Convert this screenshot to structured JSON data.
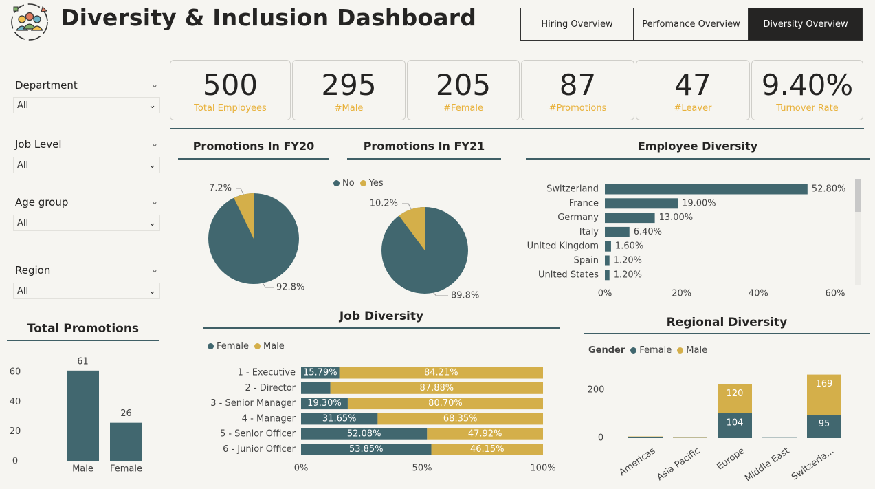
{
  "header": {
    "title": "Diversity & Inclusion Dashboard",
    "nav": [
      "Hiring Overview",
      "Perfomance Overview",
      "Diversity Overview"
    ],
    "active_nav": 2
  },
  "filters": [
    {
      "label": "Department",
      "value": "All"
    },
    {
      "label": "Job Level",
      "value": "All"
    },
    {
      "label": "Age group",
      "value": "All"
    },
    {
      "label": "Region",
      "value": "All"
    }
  ],
  "kpis": [
    {
      "value": "500",
      "label": "Total Employees"
    },
    {
      "value": "295",
      "label": "#Male"
    },
    {
      "value": "205",
      "label": "#Female"
    },
    {
      "value": "87",
      "label": "#Promotions"
    },
    {
      "value": "47",
      "label": "#Leaver"
    },
    {
      "value": "9.40%",
      "label": "Turnover Rate"
    }
  ],
  "colors": {
    "primary": "#41676f",
    "accent": "#d4af4a",
    "kpi_label": "#e8b13a",
    "rule": "#3f5f66"
  },
  "chart_data": [
    {
      "id": "promo_fy20",
      "type": "pie",
      "title": "Promotions In FY20",
      "legend": [
        "No",
        "Yes"
      ],
      "slices": [
        {
          "name": "No",
          "value": 92.8,
          "label": "92.8%"
        },
        {
          "name": "Yes",
          "value": 7.2,
          "label": "7.2%"
        }
      ]
    },
    {
      "id": "promo_fy21",
      "type": "pie",
      "title": "Promotions In FY21",
      "slices": [
        {
          "name": "No",
          "value": 89.8,
          "label": "89.8%"
        },
        {
          "name": "Yes",
          "value": 10.2,
          "label": "10.2%"
        }
      ]
    },
    {
      "id": "employee_diversity",
      "type": "bar",
      "orientation": "horizontal",
      "title": "Employee Diversity",
      "categories": [
        "Switzerland",
        "France",
        "Germany",
        "Italy",
        "United Kingdom",
        "Spain",
        "United States"
      ],
      "values": [
        52.8,
        19.0,
        13.0,
        6.4,
        1.6,
        1.2,
        1.2
      ],
      "labels": [
        "52.80%",
        "19.00%",
        "13.00%",
        "6.40%",
        "1.60%",
        "1.20%",
        "1.20%"
      ],
      "xticks": [
        "0%",
        "20%",
        "40%",
        "60%"
      ],
      "xlim": [
        0,
        60
      ]
    },
    {
      "id": "total_promotions",
      "type": "bar",
      "title": "Total Promotions",
      "categories": [
        "Male",
        "Female"
      ],
      "values": [
        61,
        26
      ],
      "yticks": [
        "0",
        "20",
        "40",
        "60"
      ],
      "ylim": [
        0,
        68
      ]
    },
    {
      "id": "job_diversity",
      "type": "bar",
      "stacked": "percent",
      "orientation": "horizontal",
      "title": "Job Diversity",
      "legend": [
        "Female",
        "Male"
      ],
      "categories": [
        "1 - Executive",
        "2 - Director",
        "3 - Senior Manager",
        "4 - Manager",
        "5 - Senior Officer",
        "6 - Junior Officer"
      ],
      "series": [
        {
          "name": "Female",
          "values": [
            15.79,
            12.12,
            19.3,
            31.65,
            52.08,
            53.85
          ],
          "labels": [
            "15.79%",
            "",
            "19.30%",
            "31.65%",
            "52.08%",
            "53.85%"
          ]
        },
        {
          "name": "Male",
          "values": [
            84.21,
            87.88,
            80.7,
            68.35,
            47.92,
            46.15
          ],
          "labels": [
            "84.21%",
            "87.88%",
            "80.70%",
            "68.35%",
            "47.92%",
            "46.15%"
          ]
        }
      ],
      "xticks": [
        "0%",
        "50%",
        "100%"
      ]
    },
    {
      "id": "regional_diversity",
      "type": "bar",
      "stacked": true,
      "title": "Regional Diversity",
      "legend_title": "Gender",
      "legend": [
        "Female",
        "Male"
      ],
      "categories": [
        "Americas",
        "Asia Pacific",
        "Europe",
        "Middle East",
        "Switzerla..."
      ],
      "series": [
        {
          "name": "Female",
          "values": [
            4,
            1,
            104,
            1,
            95
          ],
          "labels": [
            "",
            "",
            "104",
            "",
            "95"
          ]
        },
        {
          "name": "Male",
          "values": [
            3,
            1,
            120,
            0,
            169
          ],
          "labels": [
            "",
            "",
            "120",
            "",
            "169"
          ]
        }
      ],
      "yticks": [
        "0",
        "200"
      ],
      "ylim": [
        0,
        290
      ]
    }
  ]
}
